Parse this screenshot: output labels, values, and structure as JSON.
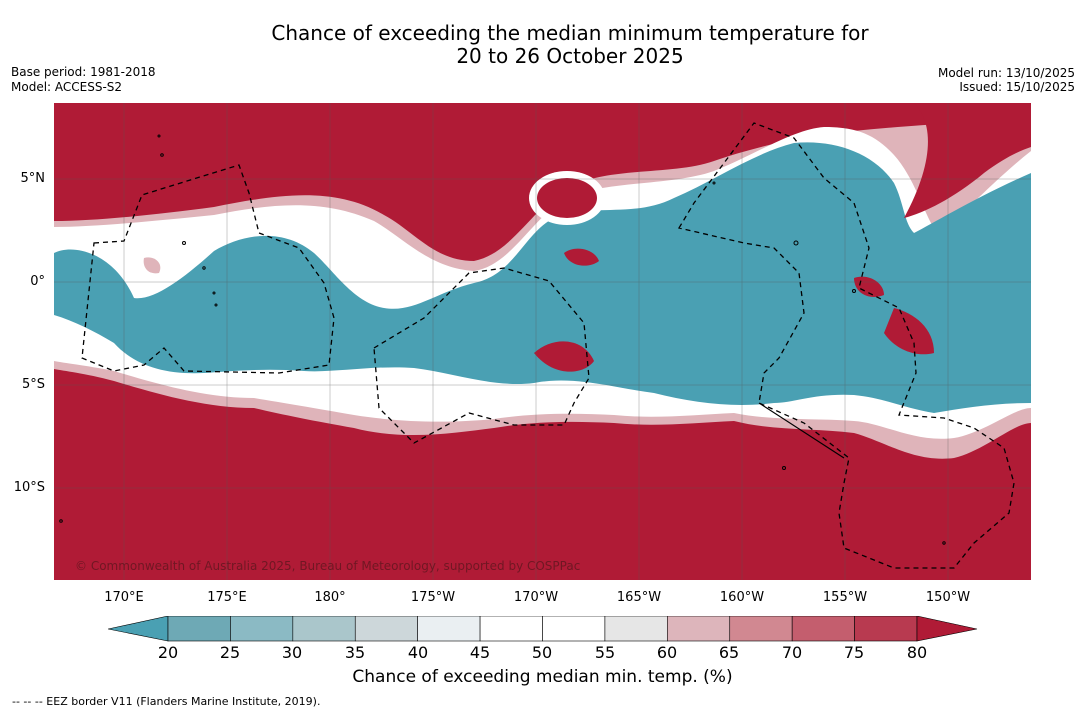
{
  "title": {
    "line1": "Chance of exceeding the median minimum temperature for",
    "line2": "20 to 26 October 2025"
  },
  "meta_left": {
    "base_period": "Base period: 1981-2018",
    "model": "Model: ACCESS-S2"
  },
  "meta_right": {
    "model_run": "Model run: 13/10/2025",
    "issued": "Issued: 15/10/2025"
  },
  "map": {
    "lon_labels": [
      "170°E",
      "175°E",
      "180°",
      "175°W",
      "170°W",
      "165°W",
      "160°W",
      "155°W",
      "150°W"
    ],
    "lat_labels": [
      "5°N",
      "0°",
      "5°S",
      "10°S"
    ],
    "copyright": "© Commonwealth of Australia 2025, Bureau of Meteorology, supported by COSPPac",
    "colors": {
      "above": "#b01b36",
      "below": "#4aa0b3"
    }
  },
  "colorbar": {
    "tick_labels": [
      "20",
      "25",
      "30",
      "35",
      "40",
      "45",
      "50",
      "55",
      "60",
      "65",
      "70",
      "75",
      "80"
    ],
    "segment_colors": [
      "#6ea9b5",
      "#8bbac4",
      "#aac6cb",
      "#cdd7da",
      "#eaeff2",
      "#ffffff",
      "#ffffff",
      "#e6e6e6",
      "#ddb5bb",
      "#d18891",
      "#c45e6e",
      "#b83a50"
    ],
    "low_color": "#4aa0b3",
    "high_color": "#b01b36",
    "title": "Chance of exceeding median min. temp. (%)"
  },
  "footer": {
    "eez_legend": "-- -- -- EEZ border V11 (Flanders Marine Institute, 2019)."
  }
}
